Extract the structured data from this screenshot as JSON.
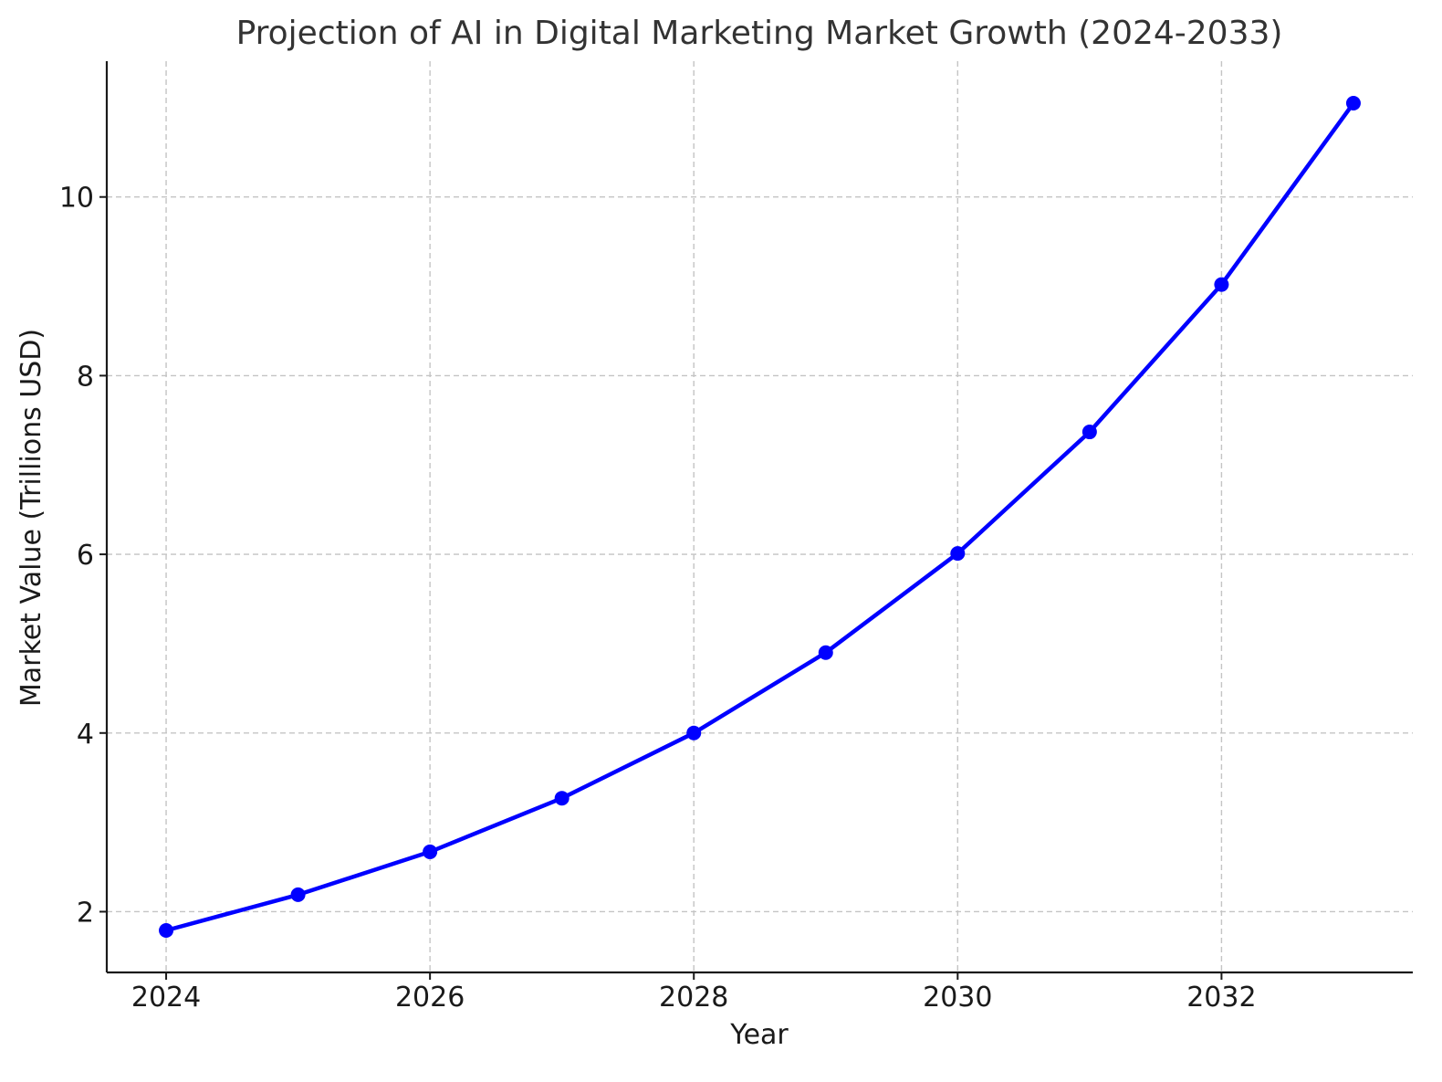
{
  "chart_data": {
    "type": "line",
    "title": "Projection of AI in Digital Marketing Market Growth (2024-2033)",
    "xlabel": "Year",
    "ylabel": "Market Value (Trillions USD)",
    "x": [
      2024,
      2025,
      2026,
      2027,
      2028,
      2029,
      2030,
      2031,
      2032,
      2033
    ],
    "series": [
      {
        "values": [
          1.79,
          2.19,
          2.67,
          3.27,
          4.0,
          4.9,
          6.01,
          7.37,
          9.02,
          11.05
        ],
        "color": "#0000ff",
        "marker": "circle"
      }
    ],
    "xlim": [
      2023.55,
      2033.45
    ],
    "ylim": [
      1.32,
      11.52
    ],
    "xticks": [
      "2024",
      "2026",
      "2028",
      "2030",
      "2032"
    ],
    "yticks": [
      "2",
      "4",
      "6",
      "8",
      "10"
    ],
    "grid": true,
    "grid_style": "dashed",
    "legend": "none"
  }
}
